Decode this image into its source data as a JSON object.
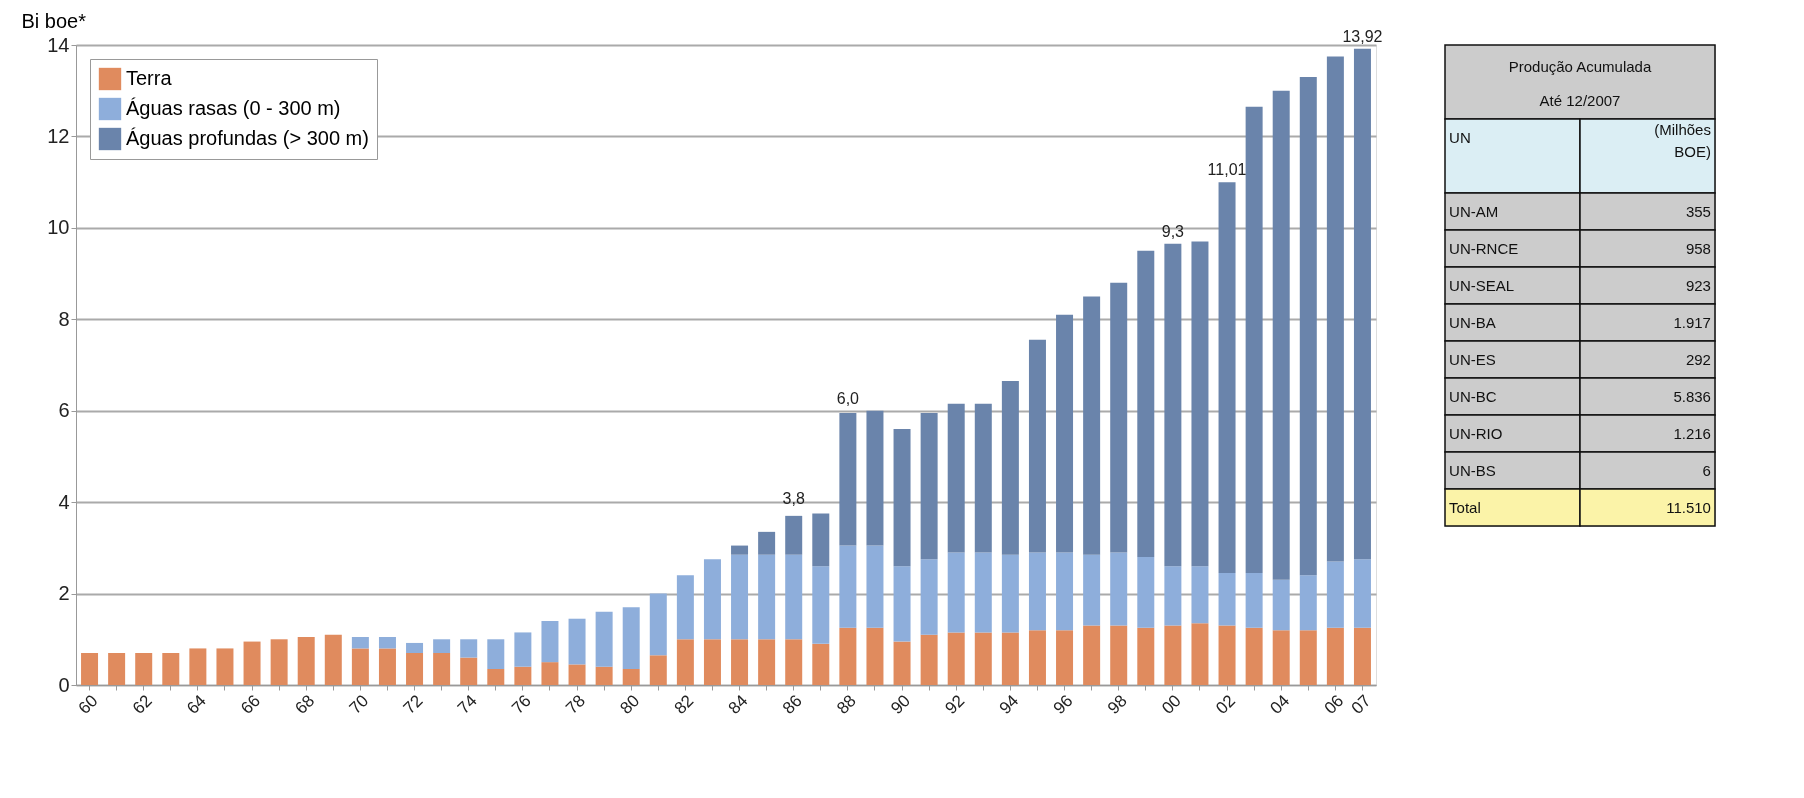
{
  "chart_data": [
    {
      "type": "bar",
      "stacked": true,
      "ylabel": "Bi boe*",
      "ylim": [
        0,
        14
      ],
      "yticks": [
        0,
        2,
        4,
        6,
        8,
        10,
        12,
        14
      ],
      "grid": "y",
      "legend": "top left",
      "categories": [
        "60",
        null,
        "62",
        null,
        "64",
        null,
        "66",
        null,
        "68",
        null,
        "70",
        null,
        "72",
        null,
        "74",
        null,
        "76",
        null,
        "78",
        null,
        "80",
        null,
        "82",
        null,
        "84",
        null,
        "86",
        null,
        "88",
        null,
        "90",
        null,
        "92",
        null,
        "94",
        null,
        "96",
        null,
        "98",
        null,
        "00",
        null,
        "02",
        null,
        "04",
        null,
        "06",
        "07"
      ],
      "series": [
        {
          "name": "Terra",
          "color": "#e08b5e",
          "values": [
            0.7,
            0.7,
            0.7,
            0.7,
            0.8,
            0.8,
            0.95,
            1.0,
            1.05,
            1.1,
            0.8,
            0.8,
            0.7,
            0.7,
            0.6,
            0.35,
            0.4,
            0.5,
            0.45,
            0.4,
            0.35,
            0.65,
            1.0,
            1.0,
            1.0,
            1.0,
            1.0,
            0.9,
            1.25,
            1.25,
            0.95,
            1.1,
            1.15,
            1.15,
            1.15,
            1.2,
            1.2,
            1.3,
            1.3,
            1.25,
            1.3,
            1.35,
            1.3,
            1.25,
            1.2,
            1.2,
            1.25,
            1.25
          ]
        },
        {
          "name": "Águas rasas (0 - 300 m)",
          "color": "#8eaedb",
          "values": [
            null,
            null,
            null,
            null,
            null,
            null,
            null,
            null,
            null,
            null,
            0.25,
            0.25,
            0.22,
            0.3,
            0.4,
            0.65,
            0.75,
            0.9,
            1.0,
            1.2,
            1.35,
            1.35,
            1.4,
            1.75,
            1.85,
            1.85,
            1.85,
            1.7,
            1.8,
            1.8,
            1.65,
            1.65,
            1.75,
            1.75,
            1.7,
            1.7,
            1.7,
            1.55,
            1.6,
            1.55,
            1.3,
            1.25,
            1.15,
            1.2,
            1.1,
            1.2,
            1.45,
            1.5
          ]
        },
        {
          "name": "Águas profundas (> 300 m)",
          "color": "#6a84ab",
          "values": [
            null,
            null,
            null,
            null,
            null,
            null,
            null,
            null,
            null,
            null,
            null,
            null,
            null,
            null,
            null,
            null,
            null,
            null,
            null,
            null,
            null,
            null,
            null,
            null,
            0.2,
            0.5,
            0.85,
            1.15,
            2.9,
            2.95,
            3.0,
            3.2,
            3.25,
            3.25,
            3.8,
            4.65,
            5.2,
            5.65,
            5.9,
            6.7,
            7.05,
            7.1,
            8.55,
            10.2,
            10.7,
            10.9,
            11.05,
            11.17
          ]
        }
      ],
      "annotations": [
        {
          "text": "3,8",
          "x": "86",
          "y": 3.8
        },
        {
          "text": "6,0",
          "x": "88",
          "y": 6.0
        },
        {
          "text": "9,3",
          "x": "00",
          "y": 9.65
        },
        {
          "text": "11,01",
          "x": "02",
          "y": 11.0
        },
        {
          "text": "13,92",
          "x": "07",
          "y": 13.92
        }
      ]
    },
    {
      "type": "other",
      "title": "Produção Acumulada Até 12/2007",
      "annotations": [
        "UN",
        "(Milhões BOE)",
        "UN-AM",
        "355",
        "UN-RNCE",
        "958",
        "UN-SEAL",
        "923",
        "UN-BA",
        "1.917",
        "UN-ES",
        "292",
        "UN-BC",
        "5.836",
        "UN-RIO",
        "1.216",
        "UN-BS",
        "6",
        "Total",
        "11.510"
      ]
    }
  ]
}
